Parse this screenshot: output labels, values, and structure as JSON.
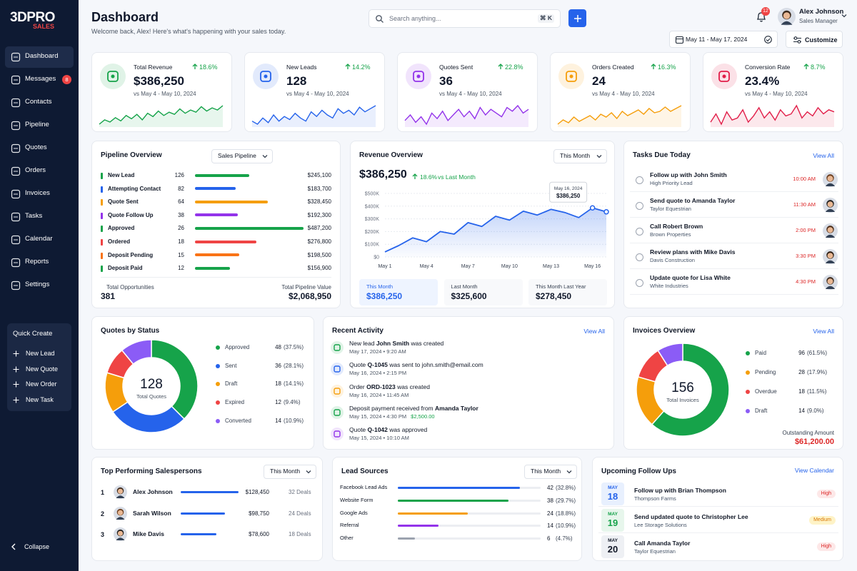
{
  "sidebar": {
    "logo": "3DPRO",
    "logo_sub": "SALES",
    "nav": [
      {
        "label": "Dashboard"
      },
      {
        "label": "Messages",
        "badge": 8
      },
      {
        "label": "Contacts"
      },
      {
        "label": "Pipeline"
      },
      {
        "label": "Quotes"
      },
      {
        "label": "Orders"
      },
      {
        "label": "Invoices"
      },
      {
        "label": "Tasks"
      },
      {
        "label": "Calendar"
      },
      {
        "label": "Reports"
      },
      {
        "label": "Settings"
      }
    ],
    "quick_create": {
      "title": "Quick Create",
      "items": [
        "New Lead",
        "New Quote",
        "New Order",
        "New Task"
      ]
    },
    "collapse": "Collapse"
  },
  "header": {
    "title": "Dashboard",
    "subtitle": "Welcome back, Alex! Here's what's happening with your sales today.",
    "search_placeholder": "Search anything...",
    "shortcut": "⌘ K",
    "notifications": 12,
    "user_name": "Alex Johnson",
    "user_role": "Sales Manager",
    "date_range": "May 11 - May 17, 2024",
    "customize": "Customize"
  },
  "kpis": [
    {
      "label": "Total Revenue",
      "change": "18.6%",
      "value": "$386,250",
      "compare": "vs May 4 - May 10, 2024",
      "color": "#16a34a",
      "sparkline": [
        22,
        30,
        26,
        34,
        28,
        38,
        32,
        40,
        30,
        42,
        36,
        46,
        38,
        44,
        40,
        50,
        42,
        48,
        44,
        54,
        46,
        52,
        48,
        56
      ]
    },
    {
      "label": "New Leads",
      "change": "14.2%",
      "value": "128",
      "compare": "vs May 4 - May 10, 2024",
      "color": "#2563eb",
      "sparkline": [
        30,
        26,
        34,
        28,
        38,
        30,
        36,
        32,
        40,
        34,
        30,
        42,
        36,
        44,
        38,
        34,
        46,
        40,
        44,
        38,
        48,
        42,
        46,
        50
      ]
    },
    {
      "label": "Quotes Sent",
      "change": "22.8%",
      "value": "36",
      "compare": "vs May 4 - May 10, 2024",
      "color": "#9333ea",
      "sparkline": [
        34,
        40,
        32,
        38,
        30,
        42,
        36,
        44,
        34,
        40,
        46,
        38,
        44,
        36,
        48,
        40,
        46,
        42,
        38,
        48,
        44,
        50,
        42,
        46
      ]
    },
    {
      "label": "Orders Created",
      "change": "16.3%",
      "value": "24",
      "compare": "vs May 4 - May 10, 2024",
      "color": "#f59e0b",
      "sparkline": [
        28,
        34,
        30,
        38,
        32,
        36,
        40,
        34,
        42,
        38,
        44,
        36,
        46,
        40,
        44,
        48,
        42,
        50,
        44,
        46,
        52,
        46,
        50,
        54
      ]
    },
    {
      "label": "Conversion Rate",
      "change": "8.7%",
      "value": "23.4%",
      "compare": "vs May 4 - May 10, 2024",
      "color": "#e11d48",
      "sparkline": [
        40,
        48,
        38,
        50,
        42,
        44,
        52,
        40,
        46,
        54,
        44,
        50,
        42,
        52,
        46,
        48,
        56,
        44,
        50,
        46,
        54,
        48,
        52,
        50
      ]
    }
  ],
  "pipeline": {
    "title": "Pipeline Overview",
    "dropdown": "Sales Pipeline",
    "stages": [
      {
        "name": "New Lead",
        "count": 126,
        "value": 245100,
        "value_label": "$245,100",
        "color": "#16a34a"
      },
      {
        "name": "Attempting Contact",
        "count": 82,
        "value": 183700,
        "value_label": "$183,700",
        "color": "#2563eb"
      },
      {
        "name": "Quote Sent",
        "count": 64,
        "value": 328450,
        "value_label": "$328,450",
        "color": "#f59e0b"
      },
      {
        "name": "Quote Follow Up",
        "count": 38,
        "value": 192300,
        "value_label": "$192,300",
        "color": "#9333ea"
      },
      {
        "name": "Approved",
        "count": 26,
        "value": 487200,
        "value_label": "$487,200",
        "color": "#16a34a"
      },
      {
        "name": "Ordered",
        "count": 18,
        "value": 276800,
        "value_label": "$276,800",
        "color": "#ef4444"
      },
      {
        "name": "Deposit Pending",
        "count": 15,
        "value": 198500,
        "value_label": "$198,500",
        "color": "#f97316"
      },
      {
        "name": "Deposit Paid",
        "count": 12,
        "value": 156900,
        "value_label": "$156,900",
        "color": "#16a34a"
      }
    ],
    "total_opportunities_label": "Total Opportunities",
    "total_opportunities": 381,
    "total_value_label": "Total Pipeline Value",
    "total_value": "$2,068,950"
  },
  "revenue": {
    "title": "Revenue Overview",
    "dropdown": "This Month",
    "total": "$386,250",
    "change": "18.6%",
    "change_text": "vs Last Month",
    "chart_data": {
      "type": "line",
      "color": "#2563eb",
      "categories": [
        "May 1",
        null,
        null,
        "May 4",
        null,
        null,
        "May 7",
        null,
        null,
        "May 10",
        null,
        null,
        "May 13",
        null,
        null,
        "May 16",
        null
      ],
      "values": [
        40000,
        90000,
        150000,
        120000,
        200000,
        180000,
        270000,
        240000,
        320000,
        290000,
        360000,
        330000,
        375000,
        350000,
        310000,
        386250,
        355000
      ],
      "ylim": [
        0,
        500000
      ],
      "yticks": [
        {
          "value": 0,
          "label": "$0"
        },
        {
          "value": 100000,
          "label": "$100K"
        },
        {
          "value": 200000,
          "label": "$200K"
        },
        {
          "value": 300000,
          "label": "$300K"
        },
        {
          "value": 400000,
          "label": "$400K"
        },
        {
          "value": 500000,
          "label": "$500K"
        }
      ],
      "grid": true,
      "annotation": {
        "date": "May 16, 2024",
        "value": "$386,250"
      }
    },
    "stats": [
      {
        "label": "This Month",
        "value": "$386,250"
      },
      {
        "label": "Last Month",
        "value": "$325,600"
      },
      {
        "label": "This Month Last Year",
        "value": "$278,450"
      }
    ]
  },
  "tasks": {
    "title": "Tasks Due Today",
    "link": "View All",
    "items": [
      {
        "title": "Follow up with John Smith",
        "sub": "High Priority Lead",
        "time": "10:00 AM"
      },
      {
        "title": "Send quote to Amanda Taylor",
        "sub": "Taylor Equestrian",
        "time": "11:30 AM"
      },
      {
        "title": "Call Robert Brown",
        "sub": "Brown Properties",
        "time": "2:00 PM"
      },
      {
        "title": "Review plans with Mike Davis",
        "sub": "Davis Construction",
        "time": "3:30 PM"
      },
      {
        "title": "Update quote for Lisa White",
        "sub": "White Industries",
        "time": "4:30 PM"
      }
    ]
  },
  "quotes": {
    "title": "Quotes by Status",
    "chart_data": {
      "type": "donut",
      "categories": [
        "Approved",
        "Sent",
        "Draft",
        "Expired",
        "Converted"
      ],
      "values": [
        48,
        36,
        18,
        12,
        14
      ],
      "percent_labels": [
        "(37.5%)",
        "(28.1%)",
        "(14.1%)",
        "(9.4%)",
        "(10.9%)"
      ],
      "colors": [
        "#16a34a",
        "#2563eb",
        "#f59e0b",
        "#ef4444",
        "#8b5cf6"
      ],
      "center_value": 128,
      "center_label": "Total Quotes"
    }
  },
  "activity": {
    "title": "Recent Activity",
    "link": "View All",
    "items": [
      {
        "parts": [
          "New lead ",
          "John Smith",
          " was created"
        ],
        "date": "May 17, 2024 • 9:20 AM",
        "color": "#16a34a"
      },
      {
        "parts": [
          "Quote ",
          "Q-1045",
          " was sent to john.smith@email.com"
        ],
        "date": "May 16, 2024 • 2:15 PM",
        "color": "#2563eb"
      },
      {
        "parts": [
          "Order ",
          "ORD-1023",
          " was created"
        ],
        "date": "May 16, 2024 • 11:45 AM",
        "color": "#f59e0b"
      },
      {
        "parts": [
          "Deposit payment received from ",
          "Amanda Taylor"
        ],
        "date": "May 15, 2024 • 4:30 PM",
        "extra": "$2,500.00",
        "color": "#16a34a"
      },
      {
        "parts": [
          "Quote ",
          "Q-1042",
          " was approved"
        ],
        "date": "May 15, 2024 • 10:10 AM",
        "color": "#9333ea"
      }
    ]
  },
  "invoices": {
    "title": "Invoices Overview",
    "link": "View All",
    "chart_data": {
      "type": "donut",
      "categories": [
        "Paid",
        "Pending",
        "Overdue",
        "Draft"
      ],
      "values": [
        96,
        28,
        18,
        14
      ],
      "percent_labels": [
        "(61.5%)",
        "(17.9%)",
        "(11.5%)",
        "(9.0%)"
      ],
      "colors": [
        "#16a34a",
        "#f59e0b",
        "#ef4444",
        "#8b5cf6"
      ],
      "center_value": 156,
      "center_label": "Total Invoices"
    },
    "outstanding_label": "Outstanding Amount",
    "outstanding_value": "$61,200.00"
  },
  "salespersons": {
    "title": "Top Performing Salespersons",
    "dropdown": "This Month",
    "people": [
      {
        "rank": 1,
        "name": "Alex Johnson",
        "revenue": 128450,
        "revenue_label": "$128,450",
        "deals": "32 Deals"
      },
      {
        "rank": 2,
        "name": "Sarah Wilson",
        "revenue": 98750,
        "revenue_label": "$98,750",
        "deals": "24 Deals"
      },
      {
        "rank": 3,
        "name": "Mike Davis",
        "revenue": 78600,
        "revenue_label": "$78,600",
        "deals": "18 Deals"
      }
    ]
  },
  "lead_sources": {
    "title": "Lead Sources",
    "dropdown": "This Month",
    "sources": [
      {
        "name": "Facebook Lead Ads",
        "count": 42,
        "percent_label": "(32.8%)",
        "color": "#2563eb"
      },
      {
        "name": "Website Form",
        "count": 38,
        "percent_label": "(29.7%)",
        "color": "#16a34a"
      },
      {
        "name": "Google Ads",
        "count": 24,
        "percent_label": "(18.8%)",
        "color": "#f59e0b"
      },
      {
        "name": "Referral",
        "count": 14,
        "percent_label": "(10.9%)",
        "color": "#9333ea"
      },
      {
        "name": "Other",
        "count": 6,
        "percent_label": "(4.7%)",
        "color": "#9ca3af"
      }
    ]
  },
  "followups": {
    "title": "Upcoming Follow Ups",
    "link": "View Calendar",
    "items": [
      {
        "month": "MAY",
        "day": 18,
        "title": "Follow up with Brian Thompson",
        "sub": "Thompson Farms",
        "priority": "High",
        "priority_color": "#dc2626",
        "priority_bg": "#fde8e8",
        "box_color": "#2563eb",
        "box_bg": "#e8f0fe"
      },
      {
        "month": "MAY",
        "day": 19,
        "title": "Send updated quote to Christopher Lee",
        "sub": "Lee Storage Solutions",
        "priority": "Medium",
        "priority_color": "#d97706",
        "priority_bg": "#fef3c7",
        "box_color": "#16a34a",
        "box_bg": "#e7f6ec"
      },
      {
        "month": "MAY",
        "day": 20,
        "title": "Call Amanda Taylor",
        "sub": "Taylor Equestrian",
        "priority": "High",
        "priority_color": "#dc2626",
        "priority_bg": "#fde8e8",
        "box_color": "#111827",
        "box_bg": "#eef0f4"
      }
    ]
  }
}
